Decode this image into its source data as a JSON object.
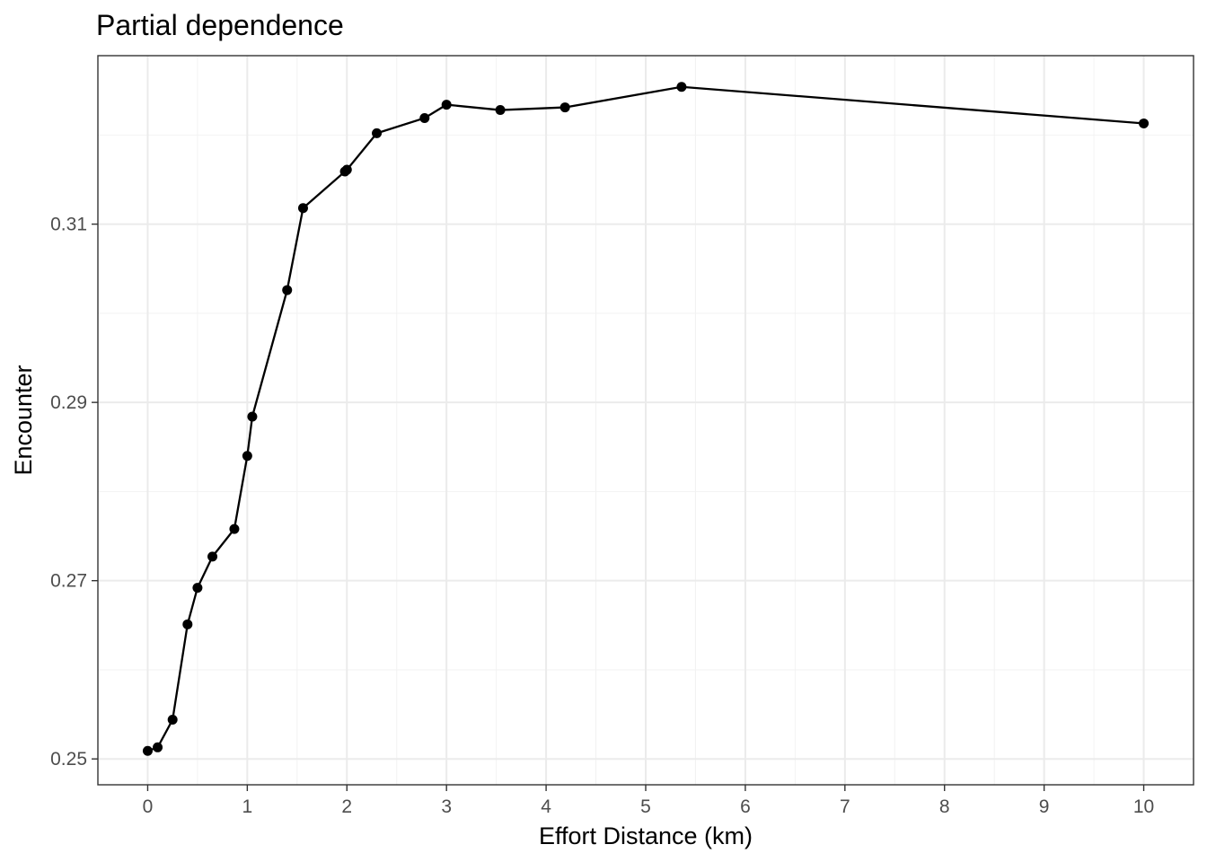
{
  "chart_data": {
    "type": "line",
    "title": "Partial dependence",
    "xlabel": "Effort Distance (km)",
    "ylabel": "Encounter",
    "xlim": [
      -0.5,
      10.5
    ],
    "ylim": [
      0.2471,
      0.3289
    ],
    "x_ticks": [
      0,
      1,
      2,
      3,
      4,
      5,
      6,
      7,
      8,
      9,
      10
    ],
    "x_tick_labels": [
      "0",
      "1",
      "2",
      "3",
      "4",
      "5",
      "6",
      "7",
      "8",
      "9",
      "10"
    ],
    "y_ticks": [
      0.25,
      0.27,
      0.29,
      0.31
    ],
    "y_tick_labels": [
      "0.25",
      "0.27",
      "0.29",
      "0.31"
    ],
    "grid": true,
    "series": [
      {
        "x": [
          0.0,
          0.1,
          0.25,
          0.4,
          0.5,
          0.65,
          0.87,
          1.0,
          1.05,
          1.4,
          1.56,
          1.98,
          2.0,
          2.3,
          2.78,
          3.0,
          3.54,
          4.19,
          5.36,
          10.0
        ],
        "y": [
          0.2509,
          0.2513,
          0.2544,
          0.2651,
          0.2692,
          0.2727,
          0.2758,
          0.284,
          0.2884,
          0.3026,
          0.3118,
          0.3159,
          0.3161,
          0.3202,
          0.3219,
          0.3234,
          0.3228,
          0.3231,
          0.3254,
          0.3213
        ],
        "color": "#000000"
      }
    ]
  }
}
